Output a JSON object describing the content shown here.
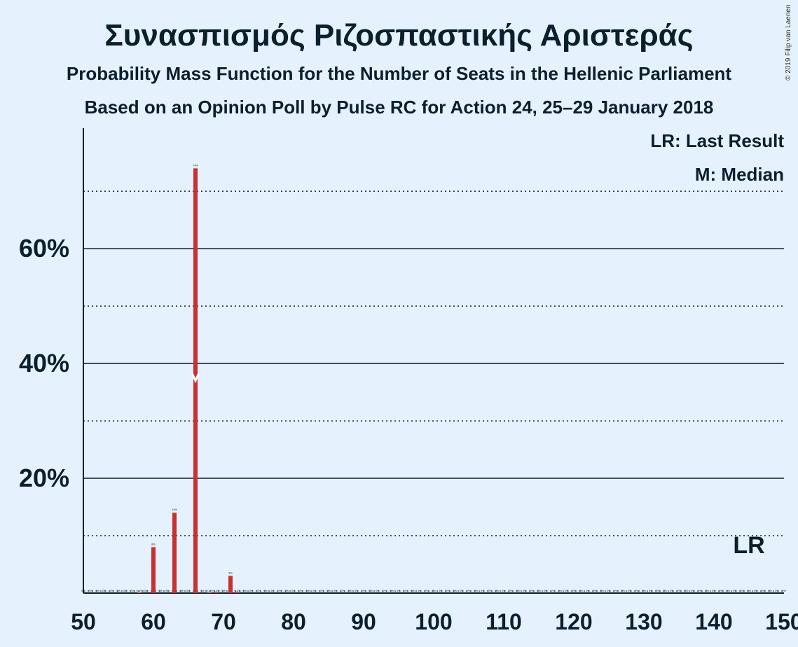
{
  "title": "Συνασπισμός Ριζοσπαστικής Αριστεράς",
  "subtitle": "Probability Mass Function for the Number of Seats in the Hellenic Parliament",
  "subtitle2": "Based on an Opinion Poll by Pulse RC for Action 24, 25–29 January 2018",
  "copyright": "© 2019 Filip van Laenen",
  "legend": {
    "last_result": "LR: Last Result",
    "median": "M: Median"
  },
  "colors": {
    "background": "#e5f1fc",
    "bar": "#c8312f",
    "text": "#0b1f2e"
  },
  "chart_data": {
    "type": "bar",
    "xlabel": "",
    "ylabel": "",
    "xlim": [
      50,
      150
    ],
    "ylim": [
      0,
      81
    ],
    "x_ticks": [
      50,
      60,
      70,
      80,
      90,
      100,
      110,
      120,
      130,
      140,
      150
    ],
    "y_ticks_labeled": [
      {
        "value": 20,
        "label": "20%"
      },
      {
        "value": 40,
        "label": "40%"
      },
      {
        "value": 60,
        "label": "60%"
      }
    ],
    "y_gridlines_dotted": [
      10,
      30,
      50,
      70
    ],
    "series": [
      {
        "x": [
          50,
          51,
          52,
          53,
          54,
          55,
          56,
          57,
          58,
          59,
          60,
          61,
          62,
          63,
          64,
          65,
          66,
          67,
          68,
          69,
          70,
          71,
          72,
          73,
          74,
          75,
          76,
          77,
          78,
          79,
          80,
          81,
          82,
          83,
          84,
          85,
          86,
          87,
          88,
          89,
          90,
          91,
          92,
          93,
          94,
          95,
          96,
          97,
          98,
          99,
          100,
          101,
          102,
          103,
          104,
          105,
          106,
          107,
          108,
          109,
          110,
          111,
          112,
          113,
          114,
          115,
          116,
          117,
          118,
          119,
          120,
          121,
          122,
          123,
          124,
          125,
          126,
          127,
          128,
          129,
          130,
          131,
          132,
          133,
          134,
          135,
          136,
          137,
          138,
          139,
          140,
          141,
          142,
          143,
          144,
          145,
          146,
          147,
          148,
          149,
          150
        ],
        "values": [
          0,
          0,
          0,
          0,
          0,
          0,
          0,
          0,
          0.1,
          0,
          8,
          0,
          0,
          14,
          0,
          0,
          74,
          0,
          0.1,
          0.2,
          0,
          3,
          0.2,
          0,
          0,
          0,
          0,
          0,
          0,
          0,
          0,
          0,
          0,
          0,
          0,
          0,
          0,
          0,
          0,
          0,
          0,
          0,
          0,
          0,
          0,
          0,
          0,
          0,
          0,
          0,
          0,
          0,
          0,
          0,
          0,
          0,
          0,
          0,
          0,
          0,
          0,
          0,
          0,
          0,
          0,
          0,
          0,
          0,
          0,
          0,
          0,
          0,
          0,
          0,
          0,
          0,
          0,
          0,
          0,
          0,
          0,
          0,
          0,
          0,
          0,
          0,
          0,
          0,
          0,
          0,
          0,
          0,
          0,
          0,
          0,
          0,
          0,
          0,
          0,
          0,
          0
        ],
        "labels": [
          "0%",
          "0%",
          "0%",
          "0%",
          "0%",
          "0%",
          "0%",
          "0%",
          "0.1%",
          "0%",
          "8%",
          "0%",
          "0%",
          "14%",
          "0%",
          "0%",
          "74%",
          "0%",
          "0.1%",
          "0.2%",
          "0%",
          "3%",
          "0.2%",
          "0%",
          "0%",
          "0%",
          "0%",
          "0%",
          "0%",
          "0%",
          "0%",
          "0%",
          "0%",
          "0%",
          "0%",
          "0%",
          "0%",
          "0%",
          "0%",
          "0%",
          "0%",
          "0%",
          "0%",
          "0%",
          "0%",
          "0%",
          "0%",
          "0%",
          "0%",
          "0%",
          "0%",
          "0%",
          "0%",
          "0%",
          "0%",
          "0%",
          "0%",
          "0%",
          "0%",
          "0%",
          "0%",
          "0%",
          "0%",
          "0%",
          "0%",
          "0%",
          "0%",
          "0%",
          "0%",
          "0%",
          "0%",
          "0%",
          "0%",
          "0%",
          "0%",
          "0%",
          "0%",
          "0%",
          "0%",
          "0%",
          "0%",
          "0%",
          "0%",
          "0%",
          "0%",
          "0%",
          "0%",
          "0%",
          "0%",
          "0%",
          "0%",
          "0%",
          "0%",
          "0%",
          "0%",
          "0%",
          "0%",
          "0%",
          "0%",
          "0%",
          "0%"
        ]
      }
    ],
    "median": 66,
    "last_result": 145,
    "last_result_label": "LR"
  }
}
